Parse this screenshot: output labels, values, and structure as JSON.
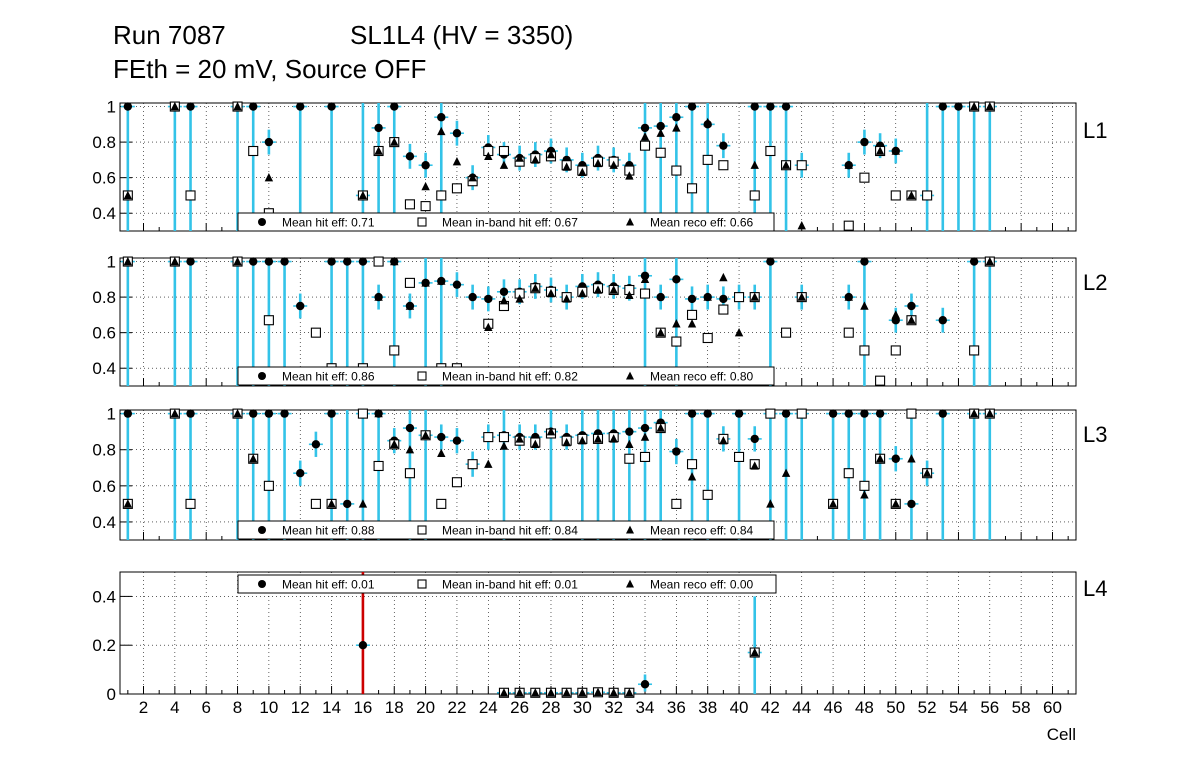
{
  "title": {
    "run": "Run 7087",
    "chamber": "SL1L4 (HV = 3350)",
    "conditions": "FEth = 20 mV, Source OFF"
  },
  "colors": {
    "error_bar": "#33c3e8",
    "error_bar_red": "#cc0000",
    "error_bar_purple": "#7a20b0",
    "marker": "#000000",
    "grid": "#000000"
  },
  "chart_data": [
    {
      "type": "scatter",
      "panel": "L1",
      "ylim": [
        0.3,
        1.02
      ],
      "yticks": [
        0.4,
        0.6,
        0.8,
        1
      ],
      "ytick_labels": [
        "0.4",
        "0.6",
        "0.8",
        "1"
      ],
      "legend": {
        "hit": "Mean hit  eff: 0.71",
        "inband": "Mean in-band hit eff: 0.67",
        "reco": "Mean reco eff: 0.66"
      },
      "series": [
        {
          "name": "Mean hit  eff: 0.71",
          "marker": "circle",
          "x": [
            1,
            4,
            5,
            8,
            9,
            10,
            12,
            14,
            16,
            17,
            18,
            19,
            20,
            21,
            22,
            23,
            24,
            25,
            26,
            27,
            28,
            29,
            30,
            31,
            32,
            33,
            34,
            35,
            36,
            37,
            38,
            39,
            41,
            42,
            43,
            44,
            47,
            48,
            49,
            50,
            52,
            53,
            54,
            55,
            56
          ],
          "y": [
            1,
            1,
            1,
            1,
            1,
            0.8,
            1,
            1,
            0.5,
            0.88,
            1,
            0.72,
            0.67,
            0.94,
            0.85,
            0.6,
            0.77,
            0.73,
            0.71,
            0.73,
            0.75,
            0.7,
            0.67,
            0.71,
            0.7,
            0.67,
            0.88,
            0.89,
            0.94,
            1,
            0.9,
            0.78,
            1,
            1,
            1,
            0.67,
            0.67,
            0.8,
            0.78,
            0.75,
            0.5,
            1,
            1,
            1,
            1
          ]
        },
        {
          "name": "Mean in-band hit eff: 0.67",
          "marker": "square",
          "x": [
            1,
            4,
            5,
            8,
            9,
            10,
            16,
            17,
            18,
            19,
            20,
            21,
            22,
            23,
            24,
            25,
            26,
            27,
            28,
            29,
            30,
            31,
            32,
            33,
            34,
            35,
            36,
            37,
            38,
            39,
            41,
            42,
            43,
            44,
            47,
            48,
            49,
            50,
            51,
            52,
            55,
            56
          ],
          "y": [
            0.5,
            1,
            0.5,
            1,
            0.75,
            0.4,
            0.5,
            0.75,
            0.8,
            0.45,
            0.44,
            0.5,
            0.54,
            0.58,
            0.75,
            0.75,
            0.69,
            0.71,
            0.72,
            0.67,
            0.64,
            0.69,
            0.69,
            0.64,
            0.78,
            0.74,
            0.64,
            0.54,
            0.7,
            0.67,
            0.5,
            0.75,
            0.67,
            0.67,
            0.33,
            0.6,
            0.75,
            0.5,
            0.5,
            0.5,
            1,
            1
          ]
        },
        {
          "name": "Mean reco eff: 0.66",
          "marker": "triangle",
          "x": [
            1,
            4,
            8,
            10,
            16,
            17,
            18,
            20,
            21,
            22,
            23,
            24,
            25,
            26,
            27,
            28,
            29,
            30,
            31,
            32,
            33,
            34,
            35,
            36,
            38,
            41,
            43,
            44,
            47,
            49,
            50,
            51,
            55,
            56
          ],
          "y": [
            0.5,
            1,
            1,
            0.6,
            0.5,
            0.75,
            0.8,
            0.55,
            0.86,
            0.69,
            0.6,
            0.72,
            0.67,
            0.71,
            0.7,
            0.73,
            0.66,
            0.63,
            0.68,
            0.67,
            0.61,
            0.83,
            0.85,
            0.88,
            0.91,
            0.67,
            0.67,
            0.33,
            0.67,
            0.75,
            0.75,
            0.5,
            1,
            1
          ]
        }
      ]
    },
    {
      "type": "scatter",
      "panel": "L2",
      "ylim": [
        0.3,
        1.02
      ],
      "yticks": [
        0.4,
        0.6,
        0.8,
        1
      ],
      "ytick_labels": [
        "0.4",
        "0.6",
        "0.8",
        "1"
      ],
      "legend": {
        "hit": "Mean hit  eff: 0.86",
        "inband": "Mean in-band hit eff: 0.82",
        "reco": "Mean reco eff: 0.80"
      },
      "series": [
        {
          "name": "Mean hit  eff: 0.86",
          "marker": "circle",
          "x": [
            1,
            4,
            5,
            8,
            9,
            10,
            11,
            12,
            14,
            15,
            16,
            17,
            18,
            19,
            20,
            21,
            22,
            23,
            24,
            25,
            26,
            27,
            28,
            29,
            30,
            31,
            32,
            33,
            34,
            35,
            36,
            37,
            38,
            39,
            40,
            41,
            42,
            44,
            47,
            48,
            50,
            51,
            53,
            55,
            56
          ],
          "y": [
            1,
            1,
            1,
            1,
            1,
            1,
            1,
            0.75,
            1,
            1,
            1,
            0.8,
            1,
            0.75,
            0.88,
            0.89,
            0.87,
            0.8,
            0.79,
            0.83,
            0.83,
            0.86,
            0.84,
            0.8,
            0.86,
            0.87,
            0.86,
            0.85,
            0.92,
            0.8,
            0.9,
            0.79,
            0.8,
            0.79,
            0.8,
            0.8,
            1,
            0.8,
            0.8,
            1,
            0.67,
            0.75,
            0.67,
            1,
            1
          ]
        },
        {
          "name": "Mean in-band hit eff: 0.82",
          "marker": "square",
          "x": [
            1,
            4,
            8,
            10,
            13,
            14,
            16,
            17,
            18,
            19,
            21,
            22,
            24,
            25,
            26,
            27,
            28,
            29,
            30,
            31,
            32,
            33,
            34,
            35,
            36,
            37,
            38,
            39,
            40,
            41,
            43,
            44,
            47,
            48,
            49,
            50,
            51,
            55,
            56
          ],
          "y": [
            1,
            1,
            1,
            0.67,
            0.6,
            0.4,
            0.4,
            1,
            0.5,
            0.88,
            0.4,
            0.4,
            0.65,
            0.75,
            0.82,
            0.85,
            0.83,
            0.8,
            0.83,
            0.85,
            0.84,
            0.84,
            0.82,
            0.6,
            0.55,
            0.7,
            0.57,
            0.73,
            0.8,
            0.8,
            0.6,
            0.8,
            0.6,
            0.5,
            0.33,
            0.5,
            0.67,
            0.5,
            1
          ]
        },
        {
          "name": "Mean reco eff: 0.80",
          "marker": "triangle",
          "x": [
            1,
            4,
            8,
            17,
            18,
            19,
            20,
            21,
            24,
            25,
            26,
            27,
            28,
            29,
            30,
            31,
            32,
            33,
            34,
            35,
            36,
            37,
            38,
            39,
            40,
            41,
            44,
            47,
            48,
            50,
            51,
            56
          ],
          "y": [
            1,
            1,
            1,
            0.8,
            1,
            0.75,
            0.88,
            0.89,
            0.63,
            0.78,
            0.79,
            0.85,
            0.82,
            0.79,
            0.82,
            0.84,
            0.84,
            0.81,
            0.9,
            0.6,
            0.65,
            0.65,
            0.8,
            0.91,
            0.6,
            0.8,
            0.8,
            0.8,
            0.75,
            0.7,
            0.67,
            1
          ]
        }
      ]
    },
    {
      "type": "scatter",
      "panel": "L3",
      "ylim": [
        0.3,
        1.02
      ],
      "yticks": [
        0.4,
        0.6,
        0.8,
        1
      ],
      "ytick_labels": [
        "0.4",
        "0.6",
        "0.8",
        "1"
      ],
      "legend": {
        "hit": "Mean hit  eff: 0.88",
        "inband": "Mean in-band hit eff: 0.84",
        "reco": "Mean reco eff: 0.84"
      },
      "series": [
        {
          "name": "Mean hit  eff: 0.88",
          "marker": "circle",
          "x": [
            1,
            4,
            5,
            8,
            9,
            10,
            11,
            12,
            13,
            14,
            15,
            16,
            17,
            18,
            19,
            20,
            21,
            22,
            23,
            24,
            25,
            26,
            27,
            28,
            29,
            30,
            31,
            32,
            33,
            34,
            35,
            36,
            37,
            38,
            39,
            40,
            41,
            42,
            43,
            44,
            46,
            47,
            48,
            49,
            50,
            51,
            52,
            53,
            55,
            56
          ],
          "y": [
            1,
            1,
            1,
            1,
            1,
            1,
            1,
            0.67,
            0.83,
            1,
            0.5,
            1,
            1,
            0.85,
            0.92,
            0.88,
            0.87,
            0.85,
            0.72,
            0.87,
            0.88,
            0.87,
            0.87,
            0.9,
            0.87,
            0.88,
            0.89,
            0.89,
            0.9,
            0.92,
            0.95,
            0.79,
            1,
            1,
            0.86,
            1,
            0.86,
            1,
            1,
            1,
            1,
            1,
            1,
            1,
            0.75,
            0.5,
            0.67,
            1,
            1,
            1
          ]
        },
        {
          "name": "Mean in-band hit eff: 0.84",
          "marker": "square",
          "x": [
            1,
            4,
            5,
            8,
            9,
            10,
            13,
            14,
            16,
            17,
            18,
            19,
            20,
            21,
            22,
            23,
            24,
            25,
            26,
            27,
            28,
            29,
            30,
            31,
            32,
            33,
            34,
            35,
            36,
            37,
            38,
            39,
            40,
            41,
            42,
            44,
            46,
            47,
            48,
            49,
            50,
            51,
            52,
            55,
            56
          ],
          "y": [
            0.5,
            1,
            0.5,
            1,
            0.75,
            0.6,
            0.5,
            0.5,
            1,
            0.71,
            0.83,
            0.67,
            0.88,
            0.5,
            0.62,
            0.72,
            0.87,
            0.87,
            0.85,
            0.84,
            0.89,
            0.85,
            0.86,
            0.86,
            0.87,
            0.75,
            0.76,
            0.92,
            0.5,
            0.72,
            0.55,
            0.86,
            0.76,
            0.72,
            1,
            1,
            0.5,
            0.67,
            0.6,
            0.75,
            0.5,
            1,
            0.67,
            1,
            1
          ]
        },
        {
          "name": "Mean reco eff: 0.84",
          "marker": "triangle",
          "x": [
            1,
            4,
            8,
            9,
            14,
            16,
            17,
            18,
            19,
            20,
            21,
            24,
            25,
            26,
            27,
            28,
            29,
            30,
            31,
            32,
            33,
            34,
            35,
            37,
            39,
            41,
            42,
            43,
            46,
            48,
            49,
            50,
            51,
            52,
            55,
            56
          ],
          "y": [
            0.5,
            1,
            1,
            0.75,
            0.5,
            0.5,
            1,
            0.83,
            0.8,
            0.88,
            0.78,
            0.72,
            0.82,
            0.86,
            0.83,
            0.9,
            0.84,
            0.85,
            0.86,
            0.86,
            0.83,
            0.87,
            0.92,
            0.65,
            0.85,
            0.71,
            0.5,
            0.67,
            0.5,
            0.55,
            0.75,
            0.5,
            0.75,
            0.67,
            1,
            1
          ]
        }
      ]
    },
    {
      "type": "scatter",
      "panel": "L4",
      "ylim": [
        0,
        0.5
      ],
      "yticks": [
        0,
        0.2,
        0.4
      ],
      "ytick_labels": [
        "0",
        "0.2",
        "0.4"
      ],
      "xlim": [
        0.5,
        61.5
      ],
      "xticks": [
        2,
        4,
        6,
        8,
        10,
        12,
        14,
        16,
        18,
        20,
        22,
        24,
        26,
        28,
        30,
        32,
        34,
        36,
        38,
        40,
        42,
        44,
        46,
        48,
        50,
        52,
        54,
        56,
        58,
        60
      ],
      "xtick_labels": [
        "2",
        "4",
        "6",
        "8",
        "10",
        "12",
        "14",
        "16",
        "18",
        "20",
        "22",
        "24",
        "26",
        "28",
        "30",
        "32",
        "34",
        "36",
        "38",
        "40",
        "42",
        "44",
        "46",
        "48",
        "50",
        "52",
        "54",
        "56",
        "58",
        "60"
      ],
      "xlabel": "Cell",
      "legend": {
        "hit": "Mean hit  eff: 0.01",
        "inband": "Mean in-band hit eff: 0.01",
        "reco": "Mean reco eff: 0.00"
      },
      "series": [
        {
          "name": "Mean hit  eff: 0.01",
          "marker": "circle",
          "x": [
            16,
            25,
            26,
            27,
            28,
            29,
            30,
            31,
            32,
            33,
            34,
            41
          ],
          "y": [
            0.2,
            0.005,
            0.005,
            0.005,
            0.005,
            0.005,
            0.005,
            0.007,
            0.005,
            0.005,
            0.04,
            0.17
          ]
        },
        {
          "name": "Mean in-band hit eff: 0.01",
          "marker": "square",
          "x": [
            25,
            26,
            27,
            28,
            29,
            30,
            31,
            32,
            33,
            41
          ],
          "y": [
            0.005,
            0.005,
            0.005,
            0.005,
            0.005,
            0.005,
            0.007,
            0.005,
            0.005,
            0.17
          ]
        },
        {
          "name": "Mean reco eff: 0.00",
          "marker": "triangle",
          "x": [
            25,
            26,
            27,
            28,
            29,
            30,
            31,
            32,
            33,
            41
          ],
          "y": [
            0.005,
            0.005,
            0.005,
            0.005,
            0.005,
            0.005,
            0.007,
            0.005,
            0.005,
            0.17
          ]
        }
      ]
    }
  ]
}
